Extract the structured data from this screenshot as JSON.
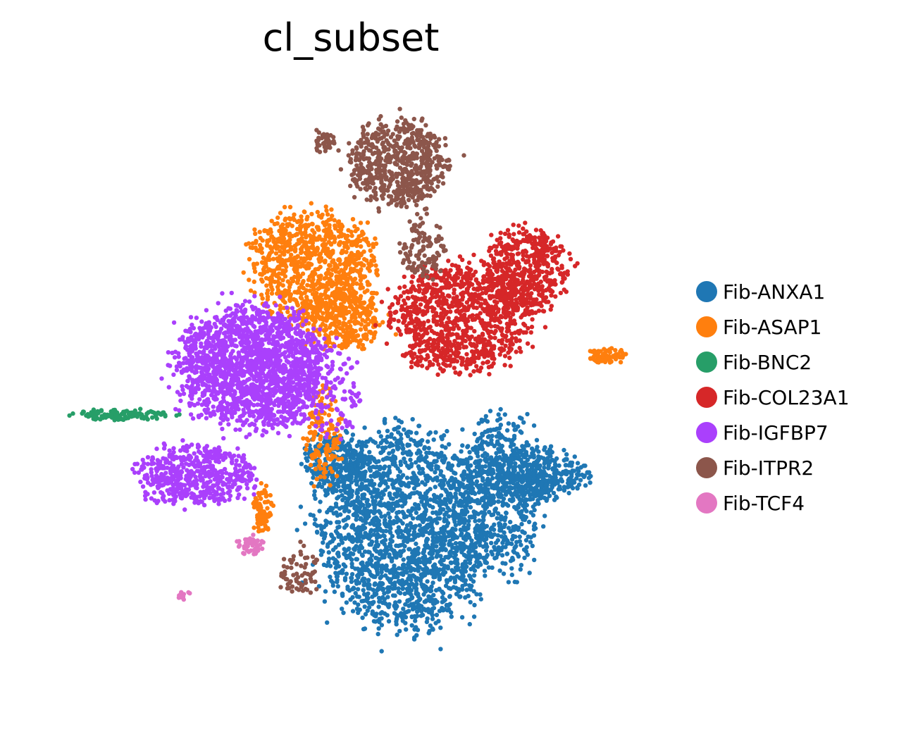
{
  "chart_data": {
    "type": "scatter",
    "title": "cl_subset",
    "xlabel": "",
    "ylabel": "",
    "axes_visible": false,
    "grid": false,
    "legend_position": "right",
    "xlim": [
      0,
      100
    ],
    "ylim": [
      0,
      100
    ],
    "series": [
      {
        "name": "Fib-ANXA1",
        "color": "#1f77b4",
        "points": 3200,
        "clusters": [
          {
            "cx": 59,
            "cy": 27,
            "rx": 14,
            "ry": 16,
            "weight": 0.62
          },
          {
            "cx": 75,
            "cy": 33,
            "rx": 7,
            "ry": 13,
            "weight": 0.18
          },
          {
            "cx": 80,
            "cy": 36,
            "rx": 9,
            "ry": 4,
            "weight": 0.12
          },
          {
            "cx": 48,
            "cy": 38,
            "rx": 5,
            "ry": 5,
            "weight": 0.08
          }
        ]
      },
      {
        "name": "Fib-ASAP1",
        "color": "#ff7f0e",
        "points": 1500,
        "clusters": [
          {
            "cx": 44,
            "cy": 71,
            "rx": 10,
            "ry": 9,
            "weight": 0.58
          },
          {
            "cx": 49,
            "cy": 62,
            "rx": 7,
            "ry": 5,
            "weight": 0.22
          },
          {
            "cx": 46,
            "cy": 43,
            "rx": 3,
            "ry": 8,
            "weight": 0.1
          },
          {
            "cx": 92,
            "cy": 56,
            "rx": 3,
            "ry": 1.2,
            "weight": 0.05
          },
          {
            "cx": 36,
            "cy": 30,
            "rx": 1.5,
            "ry": 4,
            "weight": 0.05
          }
        ]
      },
      {
        "name": "Fib-BNC2",
        "color": "#279e68",
        "points": 110,
        "clusters": [
          {
            "cx": 13,
            "cy": 46,
            "rx": 8,
            "ry": 0.9,
            "weight": 1.0
          }
        ]
      },
      {
        "name": "Fib-COL23A1",
        "color": "#d62728",
        "points": 1500,
        "clusters": [
          {
            "cx": 68,
            "cy": 62,
            "rx": 11,
            "ry": 9,
            "weight": 0.65
          },
          {
            "cx": 79,
            "cy": 70,
            "rx": 7,
            "ry": 7,
            "weight": 0.35
          }
        ]
      },
      {
        "name": "Fib-IGFBP7",
        "color": "#aa40fc",
        "points": 2400,
        "clusters": [
          {
            "cx": 34,
            "cy": 54,
            "rx": 12,
            "ry": 10,
            "weight": 0.72
          },
          {
            "cx": 25,
            "cy": 36,
            "rx": 9,
            "ry": 5,
            "weight": 0.22
          },
          {
            "cx": 46,
            "cy": 50,
            "rx": 6,
            "ry": 8,
            "weight": 0.06
          }
        ]
      },
      {
        "name": "Fib-ITPR2",
        "color": "#8c564b",
        "points": 850,
        "clusters": [
          {
            "cx": 58,
            "cy": 88,
            "rx": 8,
            "ry": 7,
            "weight": 0.74
          },
          {
            "cx": 62,
            "cy": 74,
            "rx": 3.5,
            "ry": 5,
            "weight": 0.13
          },
          {
            "cx": 42,
            "cy": 20,
            "rx": 3.5,
            "ry": 4,
            "weight": 0.08
          },
          {
            "cx": 46,
            "cy": 92,
            "rx": 1.5,
            "ry": 2,
            "weight": 0.05
          }
        ]
      },
      {
        "name": "Fib-TCF4",
        "color": "#e377c2",
        "points": 60,
        "clusters": [
          {
            "cx": 34,
            "cy": 24,
            "rx": 2,
            "ry": 1.8,
            "weight": 0.75
          },
          {
            "cx": 23,
            "cy": 16,
            "rx": 1.2,
            "ry": 0.8,
            "weight": 0.25
          }
        ]
      }
    ]
  }
}
